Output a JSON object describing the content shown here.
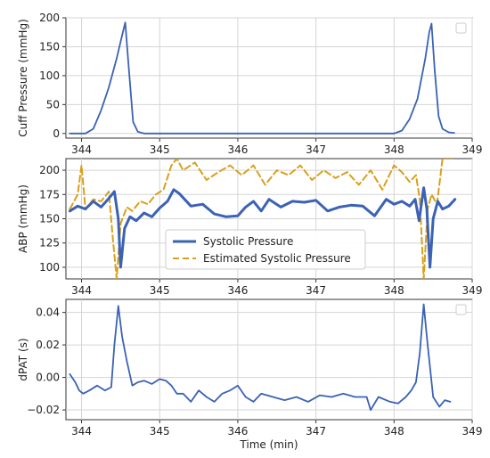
{
  "chart_data": [
    {
      "type": "line",
      "title": "",
      "xlabel": "",
      "ylabel": "Cuff Pressure (mmHg)",
      "xlim": [
        343.8,
        349.0
      ],
      "ylim": [
        -8,
        200
      ],
      "x_ticks": [
        "344",
        "345",
        "346",
        "347",
        "348",
        "349"
      ],
      "y_ticks": [
        "0",
        "50",
        "100",
        "150",
        "200"
      ],
      "grid": true,
      "legend": "top-right (empty)",
      "series": [
        {
          "color": "#3b62b5",
          "x": [
            343.85,
            344.05,
            344.15,
            344.25,
            344.35,
            344.45,
            344.52,
            344.56,
            344.6,
            344.66,
            344.72,
            344.8,
            345.0,
            345.5,
            346.0,
            346.5,
            347.0,
            347.5,
            348.0,
            348.1,
            348.2,
            348.3,
            348.4,
            348.45,
            348.48,
            348.52,
            348.57,
            348.62,
            348.7,
            348.77
          ],
          "values": [
            0,
            0,
            8,
            40,
            80,
            130,
            170,
            192,
            120,
            20,
            3,
            0,
            0,
            0,
            0,
            0,
            0,
            0,
            0,
            5,
            25,
            60,
            130,
            175,
            190,
            110,
            30,
            8,
            2,
            1
          ]
        }
      ]
    },
    {
      "type": "line",
      "title": "",
      "xlabel": "",
      "ylabel": "ABP (mmHg)",
      "xlim": [
        343.8,
        349.0
      ],
      "ylim": [
        88,
        212
      ],
      "x_ticks": [
        "344",
        "345",
        "346",
        "347",
        "348",
        "349"
      ],
      "y_ticks": [
        "100",
        "125",
        "150",
        "175",
        "200"
      ],
      "grid": true,
      "legend": "center",
      "series": [
        {
          "name": "Systolic Pressure",
          "color": "#3b62b5",
          "style": "solid",
          "x": [
            343.85,
            343.95,
            344.05,
            344.15,
            344.25,
            344.35,
            344.42,
            344.47,
            344.5,
            344.55,
            344.62,
            344.7,
            344.8,
            344.9,
            345.0,
            345.1,
            345.18,
            345.25,
            345.4,
            345.55,
            345.7,
            345.85,
            346.0,
            346.1,
            346.2,
            346.3,
            346.4,
            346.55,
            346.7,
            346.85,
            347.0,
            347.15,
            347.3,
            347.45,
            347.6,
            347.75,
            347.9,
            348.0,
            348.1,
            348.2,
            348.27,
            348.32,
            348.38,
            348.42,
            348.46,
            348.5,
            348.56,
            348.62,
            348.7,
            348.78
          ],
          "values": [
            158,
            163,
            160,
            168,
            162,
            171,
            178,
            150,
            100,
            140,
            152,
            148,
            156,
            152,
            161,
            168,
            180,
            176,
            163,
            165,
            155,
            152,
            153,
            162,
            168,
            158,
            170,
            162,
            168,
            167,
            169,
            158,
            162,
            164,
            163,
            153,
            170,
            165,
            168,
            163,
            170,
            148,
            182,
            160,
            100,
            150,
            168,
            160,
            163,
            170
          ]
        },
        {
          "name": "Estimated Systolic Pressure",
          "color": "#d9a01c",
          "style": "dashed",
          "x": [
            343.85,
            343.95,
            344.0,
            344.05,
            344.15,
            344.25,
            344.35,
            344.4,
            344.45,
            344.5,
            344.58,
            344.65,
            344.75,
            344.85,
            344.95,
            345.05,
            345.15,
            345.22,
            345.3,
            345.45,
            345.6,
            345.75,
            345.9,
            346.05,
            346.2,
            346.35,
            346.5,
            346.65,
            346.8,
            346.95,
            347.1,
            347.25,
            347.4,
            347.55,
            347.7,
            347.85,
            348.0,
            348.1,
            348.2,
            348.28,
            348.33,
            348.38,
            348.43,
            348.48,
            348.55,
            348.62,
            348.7,
            348.78
          ],
          "values": [
            160,
            175,
            205,
            160,
            170,
            168,
            178,
            130,
            88,
            145,
            162,
            158,
            168,
            165,
            175,
            180,
            205,
            212,
            200,
            208,
            190,
            198,
            205,
            195,
            205,
            185,
            200,
            195,
            205,
            190,
            200,
            192,
            198,
            185,
            200,
            180,
            205,
            198,
            188,
            195,
            170,
            88,
            160,
            175,
            165,
            212,
            212,
            212
          ]
        }
      ]
    },
    {
      "type": "line",
      "title": "",
      "xlabel": "Time (min)",
      "ylabel": "dPAT (s)",
      "xlim": [
        343.8,
        349.0
      ],
      "ylim": [
        -0.026,
        0.048
      ],
      "x_ticks": [
        "344",
        "345",
        "346",
        "347",
        "348",
        "349"
      ],
      "y_ticks": [
        "−0.02",
        "0.00",
        "0.02",
        "0.04"
      ],
      "grid": true,
      "legend": "top-right (empty)",
      "series": [
        {
          "color": "#3b62b5",
          "x": [
            343.85,
            343.92,
            343.97,
            344.02,
            344.1,
            344.2,
            344.3,
            344.38,
            344.42,
            344.47,
            344.52,
            344.58,
            344.65,
            344.72,
            344.8,
            344.9,
            345.0,
            345.08,
            345.15,
            345.22,
            345.3,
            345.4,
            345.5,
            345.6,
            345.7,
            345.8,
            345.9,
            346.0,
            346.1,
            346.2,
            346.3,
            346.45,
            346.6,
            346.75,
            346.9,
            347.05,
            347.2,
            347.35,
            347.5,
            347.65,
            347.7,
            347.8,
            347.95,
            348.05,
            348.15,
            348.22,
            348.28,
            348.33,
            348.38,
            348.43,
            348.5,
            348.58,
            348.65,
            348.72
          ],
          "values": [
            0.002,
            -0.003,
            -0.008,
            -0.01,
            -0.008,
            -0.005,
            -0.008,
            -0.006,
            0.02,
            0.044,
            0.025,
            0.01,
            -0.005,
            -0.003,
            -0.002,
            -0.004,
            -0.001,
            -0.002,
            -0.005,
            -0.01,
            -0.01,
            -0.015,
            -0.008,
            -0.012,
            -0.015,
            -0.01,
            -0.008,
            -0.005,
            -0.012,
            -0.015,
            -0.01,
            -0.012,
            -0.014,
            -0.012,
            -0.015,
            -0.011,
            -0.012,
            -0.01,
            -0.012,
            -0.012,
            -0.02,
            -0.012,
            -0.015,
            -0.016,
            -0.012,
            -0.008,
            -0.003,
            0.015,
            0.045,
            0.02,
            -0.012,
            -0.018,
            -0.014,
            -0.015
          ]
        }
      ]
    }
  ]
}
